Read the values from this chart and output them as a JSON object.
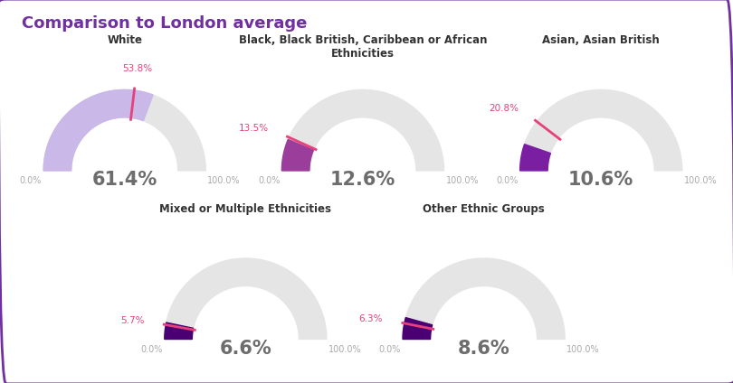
{
  "title": "Comparison to London average",
  "title_color": "#7030a0",
  "background_color": "#ffffff",
  "border_color": "#7030a0",
  "gauges": [
    {
      "label": "White",
      "ward_value": 61.4,
      "london_avg": 53.8,
      "ward_color": "#c9b8e8",
      "london_color": "#e8407a",
      "center_text_color": "#6d6d6d",
      "row": 0,
      "col": 0
    },
    {
      "label": "Black, Black British, Caribbean or African\nEthnicities",
      "ward_value": 12.6,
      "london_avg": 13.5,
      "ward_color": "#9b3d9b",
      "london_color": "#e8407a",
      "center_text_color": "#6d6d6d",
      "row": 0,
      "col": 1
    },
    {
      "label": "Asian, Asian British",
      "ward_value": 10.6,
      "london_avg": 20.8,
      "ward_color": "#7b1fa2",
      "london_color": "#e8407a",
      "center_text_color": "#6d6d6d",
      "row": 0,
      "col": 2
    },
    {
      "label": "Mixed or Multiple Ethnicities",
      "ward_value": 6.6,
      "london_avg": 5.7,
      "ward_color": "#4a0072",
      "london_color": "#e8407a",
      "center_text_color": "#6d6d6d",
      "row": 1,
      "col": 1
    },
    {
      "label": "Other Ethnic Groups",
      "ward_value": 8.6,
      "london_avg": 6.3,
      "ward_color": "#4a0072",
      "london_color": "#e8407a",
      "center_text_color": "#6d6d6d",
      "row": 1,
      "col": 2
    }
  ],
  "gauge_bg_color": "#e5e5e5",
  "min_val": 0.0,
  "max_val": 100.0,
  "label_color": "#333333",
  "minmax_color": "#aaaaaa"
}
